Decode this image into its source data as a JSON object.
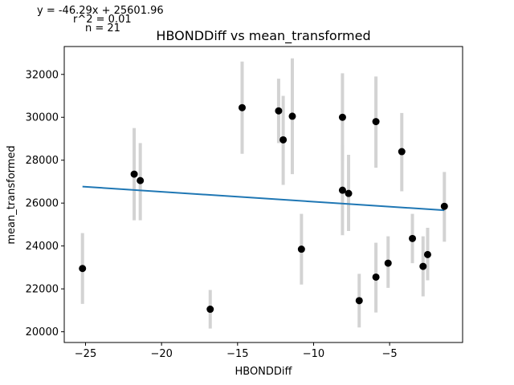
{
  "chart_data": {
    "type": "scatter",
    "title": "HBONDDiff vs mean_transformed",
    "xlabel": "HBONDDiff",
    "ylabel": "mean_transformed",
    "xlim": [
      -26.4,
      -0.2
    ],
    "ylim": [
      19500,
      33300
    ],
    "xticks": [
      -25,
      -20,
      -15,
      -10,
      -5
    ],
    "xtick_labels": [
      "−25",
      "−20",
      "−15",
      "−10",
      "−5"
    ],
    "yticks": [
      20000,
      22000,
      24000,
      26000,
      28000,
      30000,
      32000
    ],
    "ytick_labels": [
      "20000",
      "22000",
      "24000",
      "26000",
      "28000",
      "30000",
      "32000"
    ],
    "grid": false,
    "annotations": [
      "y = -46.29x + 25601.96",
      "r^2 = 0.01",
      "n = 21"
    ],
    "colors": {
      "points": "#000000",
      "errorbars": "#d3d3d3",
      "fit_line": "#1f77b4"
    },
    "fit": {
      "slope": -46.29,
      "intercept": 25601.96
    },
    "points": [
      {
        "x": -25.2,
        "y": 22950,
        "ylo": 21300,
        "yhi": 24600
      },
      {
        "x": -21.8,
        "y": 27350,
        "ylo": 25200,
        "yhi": 29500
      },
      {
        "x": -21.4,
        "y": 27050,
        "ylo": 25200,
        "yhi": 28800
      },
      {
        "x": -16.8,
        "y": 21050,
        "ylo": 20150,
        "yhi": 21950
      },
      {
        "x": -14.7,
        "y": 30450,
        "ylo": 28300,
        "yhi": 32600
      },
      {
        "x": -12.3,
        "y": 30300,
        "ylo": 28800,
        "yhi": 31800
      },
      {
        "x": -12.0,
        "y": 28950,
        "ylo": 26850,
        "yhi": 31000
      },
      {
        "x": -11.4,
        "y": 30050,
        "ylo": 27350,
        "yhi": 32750
      },
      {
        "x": -10.8,
        "y": 23850,
        "ylo": 22200,
        "yhi": 25500
      },
      {
        "x": -8.1,
        "y": 30000,
        "ylo": 27950,
        "yhi": 32050
      },
      {
        "x": -8.1,
        "y": 26600,
        "ylo": 24500,
        "yhi": 28700
      },
      {
        "x": -7.7,
        "y": 26450,
        "ylo": 24700,
        "yhi": 28250
      },
      {
        "x": -7.0,
        "y": 21450,
        "ylo": 20200,
        "yhi": 22700
      },
      {
        "x": -5.9,
        "y": 29800,
        "ylo": 27650,
        "yhi": 31900
      },
      {
        "x": -5.9,
        "y": 22550,
        "ylo": 20900,
        "yhi": 24150
      },
      {
        "x": -5.1,
        "y": 23200,
        "ylo": 22050,
        "yhi": 24450
      },
      {
        "x": -4.2,
        "y": 28400,
        "ylo": 26550,
        "yhi": 30200
      },
      {
        "x": -3.5,
        "y": 24350,
        "ylo": 23200,
        "yhi": 25500
      },
      {
        "x": -2.8,
        "y": 23050,
        "ylo": 21650,
        "yhi": 24450
      },
      {
        "x": -2.5,
        "y": 23600,
        "ylo": 22400,
        "yhi": 24850
      },
      {
        "x": -1.4,
        "y": 25850,
        "ylo": 24200,
        "yhi": 27450
      }
    ]
  }
}
